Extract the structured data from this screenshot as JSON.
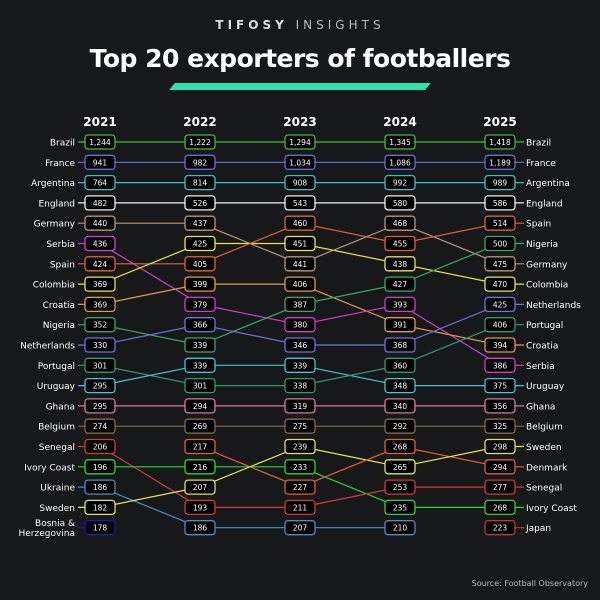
{
  "header": {
    "brand_bold": "TIFOSY",
    "brand_light": "INSIGHTS",
    "title": "Top 20 exporters of footballers"
  },
  "source": "Source: Football Observatory",
  "chart_data": {
    "type": "bump",
    "title": "Top 20 exporters of footballers",
    "years": [
      "2021",
      "2022",
      "2023",
      "2024",
      "2025"
    ],
    "rankings": {
      "2021": [
        [
          "Brazil",
          "1,244"
        ],
        [
          "France",
          "941"
        ],
        [
          "Argentina",
          "764"
        ],
        [
          "England",
          "482"
        ],
        [
          "Germany",
          "440"
        ],
        [
          "Serbia",
          "436"
        ],
        [
          "Spain",
          "424"
        ],
        [
          "Colombia",
          "369"
        ],
        [
          "Croatia",
          "369"
        ],
        [
          "Nigeria",
          "352"
        ],
        [
          "Netherlands",
          "330"
        ],
        [
          "Portugal",
          "301"
        ],
        [
          "Uruguay",
          "295"
        ],
        [
          "Ghana",
          "295"
        ],
        [
          "Belgium",
          "274"
        ],
        [
          "Senegal",
          "206"
        ],
        [
          "Ivory Coast",
          "196"
        ],
        [
          "Ukraine",
          "186"
        ],
        [
          "Sweden",
          "182"
        ],
        [
          "Bosnia & Herzegovina",
          "178"
        ]
      ],
      "2022": [
        [
          "Brazil",
          "1,222"
        ],
        [
          "France",
          "982"
        ],
        [
          "Argentina",
          "814"
        ],
        [
          "England",
          "526"
        ],
        [
          "Germany",
          "437"
        ],
        [
          "Colombia",
          "425"
        ],
        [
          "Spain",
          "405"
        ],
        [
          "Croatia",
          "399"
        ],
        [
          "Serbia",
          "379"
        ],
        [
          "Netherlands",
          "366"
        ],
        [
          "Nigeria",
          "339"
        ],
        [
          "Uruguay",
          "339"
        ],
        [
          "Portugal",
          "301"
        ],
        [
          "Ghana",
          "294"
        ],
        [
          "Belgium",
          "269"
        ],
        [
          "Denmark",
          "217"
        ],
        [
          "Ivory Coast",
          "216"
        ],
        [
          "Sweden",
          "207"
        ],
        [
          "Senegal",
          "193"
        ],
        [
          "Ukraine",
          "186"
        ]
      ],
      "2023": [
        [
          "Brazil",
          "1,294"
        ],
        [
          "France",
          "1,034"
        ],
        [
          "Argentina",
          "908"
        ],
        [
          "England",
          "543"
        ],
        [
          "Spain",
          "460"
        ],
        [
          "Colombia",
          "451"
        ],
        [
          "Germany",
          "441"
        ],
        [
          "Croatia",
          "406"
        ],
        [
          "Nigeria",
          "387"
        ],
        [
          "Serbia",
          "380"
        ],
        [
          "Netherlands",
          "346"
        ],
        [
          "Uruguay",
          "339"
        ],
        [
          "Portugal",
          "338"
        ],
        [
          "Ghana",
          "319"
        ],
        [
          "Belgium",
          "275"
        ],
        [
          "Sweden",
          "239"
        ],
        [
          "Ivory Coast",
          "233"
        ],
        [
          "Denmark",
          "227"
        ],
        [
          "Senegal",
          "211"
        ],
        [
          "Ukraine",
          "207"
        ]
      ],
      "2024": [
        [
          "Brazil",
          "1,345"
        ],
        [
          "France",
          "1,086"
        ],
        [
          "Argentina",
          "992"
        ],
        [
          "England",
          "580"
        ],
        [
          "Germany",
          "468"
        ],
        [
          "Spain",
          "455"
        ],
        [
          "Colombia",
          "438"
        ],
        [
          "Nigeria",
          "427"
        ],
        [
          "Serbia",
          "393"
        ],
        [
          "Croatia",
          "391"
        ],
        [
          "Netherlands",
          "368"
        ],
        [
          "Portugal",
          "360"
        ],
        [
          "Uruguay",
          "348"
        ],
        [
          "Ghana",
          "340"
        ],
        [
          "Belgium",
          "292"
        ],
        [
          "Denmark",
          "268"
        ],
        [
          "Sweden",
          "265"
        ],
        [
          "Senegal",
          "253"
        ],
        [
          "Ivory Coast",
          "235"
        ],
        [
          "Ukraine",
          "210"
        ]
      ],
      "2025": [
        [
          "Brazil",
          "1,418"
        ],
        [
          "France",
          "1,189"
        ],
        [
          "Argentina",
          "989"
        ],
        [
          "England",
          "586"
        ],
        [
          "Spain",
          "514"
        ],
        [
          "Nigeria",
          "500"
        ],
        [
          "Germany",
          "475"
        ],
        [
          "Colombia",
          "470"
        ],
        [
          "Netherlands",
          "425"
        ],
        [
          "Portugal",
          "406"
        ],
        [
          "Croatia",
          "394"
        ],
        [
          "Serbia",
          "386"
        ],
        [
          "Uruguay",
          "375"
        ],
        [
          "Ghana",
          "356"
        ],
        [
          "Belgium",
          "325"
        ],
        [
          "Sweden",
          "298"
        ],
        [
          "Denmark",
          "294"
        ],
        [
          "Senegal",
          "277"
        ],
        [
          "Ivory Coast",
          "268"
        ],
        [
          "Japan",
          "223"
        ]
      ]
    },
    "colors": {
      "Brazil": "#3cbf3c",
      "France": "#6c6cd6",
      "Argentina": "#38c4c4",
      "England": "#f0f0f0",
      "Germany": "#b8987a",
      "Serbia": "#d23ed2",
      "Spain": "#e0623c",
      "Colombia": "#e6e64a",
      "Croatia": "#e09c44",
      "Nigeria": "#3aa862",
      "Netherlands": "#7070e0",
      "Portugal": "#2e9a72",
      "Uruguay": "#40c6d6",
      "Ghana": "#d07aa0",
      "Belgium": "#8a6a4c",
      "Senegal": "#d03a3a",
      "Ivory Coast": "#2ed42e",
      "Ukraine": "#4a8ec8",
      "Sweden": "#e2e25e",
      "Bosnia & Herzegovina": "#1c1ca6",
      "Denmark": "#e0603a",
      "Japan": "#c83044"
    }
  }
}
